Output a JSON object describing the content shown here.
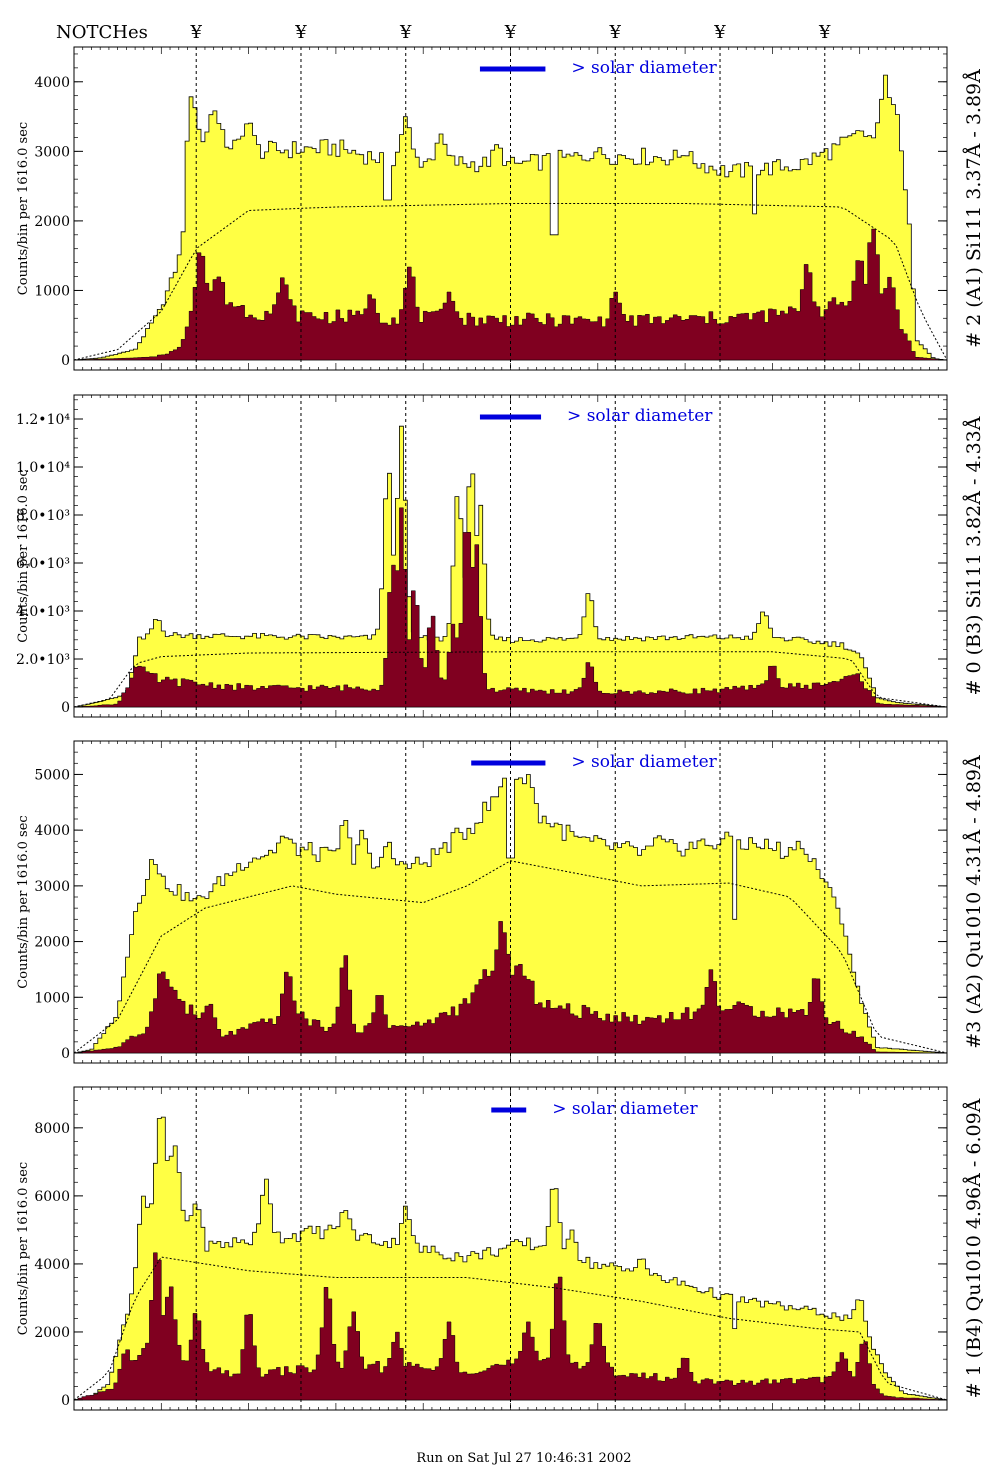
{
  "header": {
    "notch_label": "NOTCHes",
    "notch_symbol": "¥",
    "notch_count": 7
  },
  "footer": {
    "run_text": "Run on Sat Jul 27 10:46:31 2002"
  },
  "colors": {
    "total": "#ffff44",
    "line": "#800020",
    "diameter": "#0000dd",
    "axis": "#000000"
  },
  "chart_data": [
    {
      "type": "area",
      "panel": "#2 (A1)",
      "ylabel": "Counts/bin per   1616.0 sec",
      "side_label": "# 2 (A1) Si111  3.37Å - 3.89Å",
      "diameter_label": "> solar diameter",
      "ylim": [
        0,
        4500
      ],
      "yticks": [
        {
          "v": 0,
          "label": "0"
        },
        {
          "v": 1000,
          "label": "1000"
        },
        {
          "v": 2000,
          "label": "2000"
        },
        {
          "v": 3000,
          "label": "3000"
        },
        {
          "v": 4000,
          "label": "4000"
        }
      ],
      "total_profile": [
        [
          0,
          0
        ],
        [
          0.03,
          30
        ],
        [
          0.07,
          150
        ],
        [
          0.1,
          750
        ],
        [
          0.125,
          1600
        ],
        [
          0.135,
          3100
        ],
        [
          0.16,
          3200
        ],
        [
          0.2,
          3000
        ],
        [
          0.3,
          3050
        ],
        [
          0.35,
          2900
        ],
        [
          0.42,
          2850
        ],
        [
          0.5,
          2800
        ],
        [
          0.6,
          2950
        ],
        [
          0.7,
          2900
        ],
        [
          0.75,
          2700
        ],
        [
          0.83,
          2800
        ],
        [
          0.9,
          3200
        ],
        [
          0.93,
          3150
        ],
        [
          0.955,
          2400
        ],
        [
          0.965,
          300
        ],
        [
          0.985,
          20
        ],
        [
          1,
          0
        ]
      ],
      "total_spikes": [
        [
          0.135,
          3800
        ],
        [
          0.16,
          3600
        ],
        [
          0.2,
          3450
        ],
        [
          0.38,
          3500
        ],
        [
          0.42,
          3250
        ],
        [
          0.485,
          3100
        ],
        [
          0.6,
          3000
        ],
        [
          0.7,
          2950
        ],
        [
          0.9,
          3300
        ],
        [
          0.93,
          4100
        ],
        [
          0.94,
          3700
        ]
      ],
      "line_profile": [
        [
          0,
          0
        ],
        [
          0.09,
          40
        ],
        [
          0.12,
          150
        ],
        [
          0.135,
          700
        ],
        [
          0.16,
          950
        ],
        [
          0.2,
          700
        ],
        [
          0.3,
          620
        ],
        [
          0.5,
          580
        ],
        [
          0.6,
          560
        ],
        [
          0.75,
          600
        ],
        [
          0.85,
          700
        ],
        [
          0.92,
          950
        ],
        [
          0.955,
          300
        ],
        [
          0.965,
          40
        ],
        [
          1,
          0
        ]
      ],
      "line_spikes": [
        [
          0.145,
          1600
        ],
        [
          0.165,
          1200
        ],
        [
          0.24,
          1200
        ],
        [
          0.34,
          950
        ],
        [
          0.385,
          1350
        ],
        [
          0.43,
          980
        ],
        [
          0.62,
          980
        ],
        [
          0.84,
          1400
        ],
        [
          0.9,
          1500
        ],
        [
          0.915,
          1900
        ],
        [
          0.935,
          1200
        ]
      ],
      "notch_dips": [
        [
          0.36,
          2300
        ],
        [
          0.55,
          1800
        ],
        [
          0.78,
          2100
        ]
      ],
      "model_curve": [
        [
          0,
          0
        ],
        [
          0.05,
          150
        ],
        [
          0.1,
          700
        ],
        [
          0.14,
          1600
        ],
        [
          0.2,
          2150
        ],
        [
          0.3,
          2200
        ],
        [
          0.5,
          2250
        ],
        [
          0.7,
          2250
        ],
        [
          0.88,
          2200
        ],
        [
          0.94,
          1700
        ],
        [
          0.97,
          700
        ],
        [
          1,
          0
        ]
      ]
    },
    {
      "type": "area",
      "panel": "#0 (B3)",
      "ylabel": "Counts/bin per   1616.0 sec",
      "side_label": "# 0 (B3) Si111  3.82Å - 4.33Å",
      "diameter_label": "> solar diameter",
      "ylim": [
        0,
        13000
      ],
      "yticks": [
        {
          "v": 0,
          "label": "0"
        },
        {
          "v": 2000,
          "label": "2.0•10³"
        },
        {
          "v": 4000,
          "label": "4.0•10³"
        },
        {
          "v": 6000,
          "label": "6.0•10³"
        },
        {
          "v": 8000,
          "label": "8.0•10³"
        },
        {
          "v": 10000,
          "label": "1.0•10⁴"
        },
        {
          "v": 12000,
          "label": "1.2•10⁴"
        }
      ],
      "total_profile": [
        [
          0,
          0
        ],
        [
          0.02,
          150
        ],
        [
          0.06,
          500
        ],
        [
          0.075,
          2800
        ],
        [
          0.1,
          3000
        ],
        [
          0.3,
          2900
        ],
        [
          0.5,
          2800
        ],
        [
          0.7,
          2900
        ],
        [
          0.8,
          2900
        ],
        [
          0.88,
          2600
        ],
        [
          0.9,
          2200
        ],
        [
          0.92,
          400
        ],
        [
          0.94,
          200
        ],
        [
          1,
          0
        ]
      ],
      "total_spikes": [
        [
          0.095,
          3700
        ],
        [
          0.36,
          10000
        ],
        [
          0.375,
          11700
        ],
        [
          0.44,
          9000
        ],
        [
          0.455,
          10200
        ],
        [
          0.465,
          8500
        ],
        [
          0.59,
          4800
        ],
        [
          0.79,
          4000
        ]
      ],
      "line_profile": [
        [
          0,
          0
        ],
        [
          0.05,
          120
        ],
        [
          0.07,
          1500
        ],
        [
          0.1,
          1100
        ],
        [
          0.2,
          800
        ],
        [
          0.4,
          800
        ],
        [
          0.5,
          700
        ],
        [
          0.6,
          600
        ],
        [
          0.7,
          650
        ],
        [
          0.85,
          900
        ],
        [
          0.9,
          1300
        ],
        [
          0.92,
          150
        ],
        [
          1,
          0
        ]
      ],
      "line_spikes": [
        [
          0.075,
          1700
        ],
        [
          0.365,
          6000
        ],
        [
          0.375,
          8300
        ],
        [
          0.39,
          5000
        ],
        [
          0.41,
          3900
        ],
        [
          0.435,
          3500
        ],
        [
          0.45,
          8000
        ],
        [
          0.46,
          7000
        ],
        [
          0.59,
          1900
        ],
        [
          0.8,
          1800
        ]
      ],
      "notch_dips": [],
      "model_curve": [
        [
          0,
          0
        ],
        [
          0.04,
          300
        ],
        [
          0.07,
          1800
        ],
        [
          0.1,
          2100
        ],
        [
          0.2,
          2250
        ],
        [
          0.5,
          2300
        ],
        [
          0.8,
          2300
        ],
        [
          0.89,
          2000
        ],
        [
          0.92,
          400
        ],
        [
          1,
          0
        ]
      ]
    },
    {
      "type": "area",
      "panel": "#3 (A2)",
      "ylabel": "Counts/bin per   1616.0 sec",
      "side_label": "#3 (A2) Qu1010  4.31Å - 4.89Å",
      "diameter_label": "> solar diameter",
      "ylim": [
        0,
        5600
      ],
      "yticks": [
        {
          "v": 0,
          "label": "0"
        },
        {
          "v": 1000,
          "label": "1000"
        },
        {
          "v": 2000,
          "label": "2000"
        },
        {
          "v": 3000,
          "label": "3000"
        },
        {
          "v": 4000,
          "label": "4000"
        },
        {
          "v": 5000,
          "label": "5000"
        }
      ],
      "total_profile": [
        [
          0,
          0
        ],
        [
          0.02,
          60
        ],
        [
          0.05,
          700
        ],
        [
          0.07,
          2600
        ],
        [
          0.1,
          3100
        ],
        [
          0.14,
          2700
        ],
        [
          0.2,
          3500
        ],
        [
          0.25,
          3700
        ],
        [
          0.3,
          3500
        ],
        [
          0.35,
          3300
        ],
        [
          0.4,
          3400
        ],
        [
          0.45,
          4000
        ],
        [
          0.48,
          4500
        ],
        [
          0.5,
          5000
        ],
        [
          0.53,
          4300
        ],
        [
          0.58,
          3800
        ],
        [
          0.65,
          3600
        ],
        [
          0.75,
          3800
        ],
        [
          0.8,
          3700
        ],
        [
          0.85,
          3400
        ],
        [
          0.88,
          2400
        ],
        [
          0.9,
          1000
        ],
        [
          0.92,
          100
        ],
        [
          1,
          0
        ]
      ],
      "total_spikes": [
        [
          0.09,
          3500
        ],
        [
          0.24,
          3900
        ],
        [
          0.31,
          4200
        ],
        [
          0.33,
          4000
        ],
        [
          0.36,
          3800
        ],
        [
          0.5,
          5200
        ],
        [
          0.52,
          5000
        ],
        [
          0.67,
          3900
        ],
        [
          0.75,
          3900
        ],
        [
          0.83,
          3800
        ]
      ],
      "line_profile": [
        [
          0,
          0
        ],
        [
          0.05,
          100
        ],
        [
          0.08,
          400
        ],
        [
          0.11,
          1200
        ],
        [
          0.13,
          800
        ],
        [
          0.17,
          300
        ],
        [
          0.25,
          700
        ],
        [
          0.3,
          400
        ],
        [
          0.4,
          500
        ],
        [
          0.45,
          900
        ],
        [
          0.5,
          1400
        ],
        [
          0.55,
          800
        ],
        [
          0.65,
          600
        ],
        [
          0.75,
          800
        ],
        [
          0.85,
          700
        ],
        [
          0.9,
          300
        ],
        [
          0.92,
          20
        ],
        [
          1,
          0
        ]
      ],
      "line_spikes": [
        [
          0.1,
          1500
        ],
        [
          0.155,
          900
        ],
        [
          0.245,
          1500
        ],
        [
          0.31,
          1800
        ],
        [
          0.35,
          1100
        ],
        [
          0.47,
          1500
        ],
        [
          0.49,
          2400
        ],
        [
          0.51,
          1600
        ],
        [
          0.73,
          1500
        ],
        [
          0.85,
          1400
        ]
      ],
      "notch_dips": [
        [
          0.5,
          3500
        ],
        [
          0.757,
          2400
        ]
      ],
      "model_curve": [
        [
          0,
          0
        ],
        [
          0.05,
          600
        ],
        [
          0.1,
          2100
        ],
        [
          0.15,
          2600
        ],
        [
          0.25,
          3000
        ],
        [
          0.3,
          2850
        ],
        [
          0.4,
          2700
        ],
        [
          0.45,
          3000
        ],
        [
          0.5,
          3450
        ],
        [
          0.55,
          3300
        ],
        [
          0.65,
          3000
        ],
        [
          0.75,
          3050
        ],
        [
          0.82,
          2800
        ],
        [
          0.88,
          1800
        ],
        [
          0.92,
          300
        ],
        [
          1,
          0
        ]
      ]
    },
    {
      "type": "area",
      "panel": "#1 (B4)",
      "ylabel": "Counts/bin per   1616.0 sec",
      "side_label": "# 1 (B4) Qu1010 4.96Å - 6.09Å",
      "diameter_label": "> solar diameter",
      "footer_label": "Run on Sat Jul 27 10:46:31 2002",
      "ylim": [
        0,
        9200
      ],
      "yticks": [
        {
          "v": 0,
          "label": "0"
        },
        {
          "v": 2000,
          "label": "2000"
        },
        {
          "v": 4000,
          "label": "4000"
        },
        {
          "v": 6000,
          "label": "6000"
        },
        {
          "v": 8000,
          "label": "8000"
        }
      ],
      "total_profile": [
        [
          0,
          0
        ],
        [
          0.02,
          100
        ],
        [
          0.04,
          500
        ],
        [
          0.06,
          2500
        ],
        [
          0.08,
          4500
        ],
        [
          0.1,
          6500
        ],
        [
          0.12,
          5500
        ],
        [
          0.15,
          4500
        ],
        [
          0.2,
          4700
        ],
        [
          0.3,
          5000
        ],
        [
          0.38,
          4500
        ],
        [
          0.45,
          4200
        ],
        [
          0.52,
          4600
        ],
        [
          0.58,
          4100
        ],
        [
          0.65,
          3700
        ],
        [
          0.7,
          3400
        ],
        [
          0.75,
          3000
        ],
        [
          0.8,
          2800
        ],
        [
          0.85,
          2600
        ],
        [
          0.9,
          2300
        ],
        [
          0.93,
          800
        ],
        [
          0.95,
          200
        ],
        [
          1,
          0
        ]
      ],
      "total_spikes": [
        [
          0.08,
          6000
        ],
        [
          0.1,
          8500
        ],
        [
          0.115,
          7500
        ],
        [
          0.14,
          5800
        ],
        [
          0.22,
          6500
        ],
        [
          0.31,
          5600
        ],
        [
          0.38,
          5700
        ],
        [
          0.55,
          6400
        ],
        [
          0.57,
          5000
        ],
        [
          0.65,
          4200
        ],
        [
          0.9,
          3000
        ]
      ],
      "line_profile": [
        [
          0,
          0
        ],
        [
          0.04,
          300
        ],
        [
          0.07,
          1000
        ],
        [
          0.09,
          1800
        ],
        [
          0.12,
          1200
        ],
        [
          0.18,
          700
        ],
        [
          0.3,
          1000
        ],
        [
          0.45,
          900
        ],
        [
          0.55,
          1200
        ],
        [
          0.65,
          700
        ],
        [
          0.75,
          500
        ],
        [
          0.85,
          600
        ],
        [
          0.9,
          700
        ],
        [
          0.93,
          100
        ],
        [
          1,
          0
        ]
      ],
      "line_spikes": [
        [
          0.06,
          1500
        ],
        [
          0.095,
          4500
        ],
        [
          0.11,
          3400
        ],
        [
          0.14,
          2600
        ],
        [
          0.2,
          2700
        ],
        [
          0.29,
          3400
        ],
        [
          0.32,
          2600
        ],
        [
          0.37,
          2000
        ],
        [
          0.43,
          2300
        ],
        [
          0.52,
          2300
        ],
        [
          0.555,
          3800
        ],
        [
          0.6,
          2400
        ],
        [
          0.7,
          1300
        ],
        [
          0.88,
          1400
        ],
        [
          0.905,
          1800
        ]
      ],
      "notch_dips": [
        [
          0.757,
          2100
        ]
      ],
      "model_curve": [
        [
          0,
          0
        ],
        [
          0.04,
          800
        ],
        [
          0.07,
          3000
        ],
        [
          0.1,
          4200
        ],
        [
          0.2,
          3800
        ],
        [
          0.3,
          3600
        ],
        [
          0.45,
          3600
        ],
        [
          0.55,
          3300
        ],
        [
          0.65,
          2900
        ],
        [
          0.75,
          2400
        ],
        [
          0.85,
          2100
        ],
        [
          0.9,
          2000
        ],
        [
          0.93,
          500
        ],
        [
          1,
          0
        ]
      ]
    }
  ]
}
